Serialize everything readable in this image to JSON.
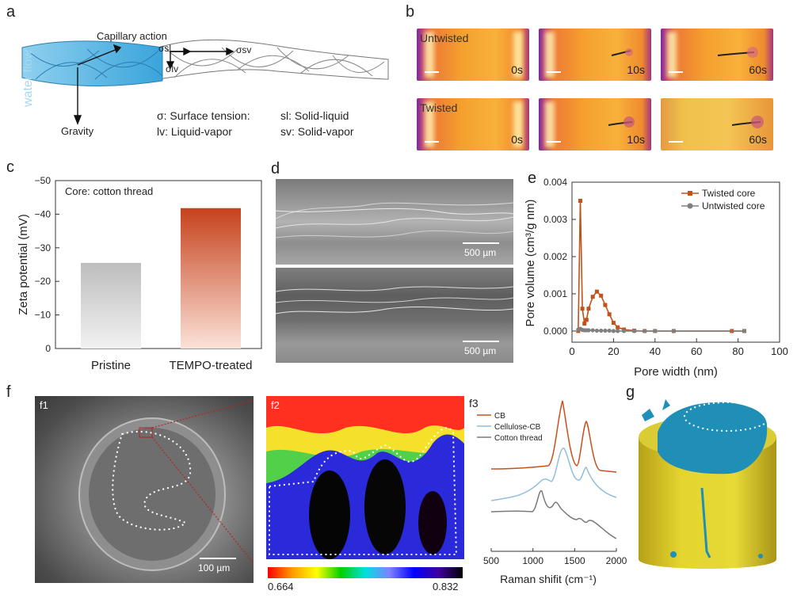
{
  "panels": {
    "a": "a",
    "b": "b",
    "c": "c",
    "d": "d",
    "e": "e",
    "f": "f",
    "g": "g"
  },
  "panel_a": {
    "water_flow": "water flow",
    "capillary": "Capillary action",
    "gravity": "Gravity",
    "sigma_sl": "σsl",
    "sigma_lv": "σlv",
    "sigma_sv": "σsv",
    "legend_sigma": "σ: Surface tension:",
    "legend_sl": "sl: Solid-liquid",
    "legend_lv": "lv: Liquid-vapor",
    "legend_sv": "sv: Solid-vapor"
  },
  "panel_b": {
    "untwisted": "Untwisted",
    "twisted": "Twisted",
    "times": [
      "0s",
      "10s",
      "60s"
    ]
  },
  "panel_c": {
    "core_label": "Core: cotton thread",
    "ylabel": "Zeta potential (mV)",
    "categories": [
      "Pristine",
      "TEMPO-treated"
    ],
    "yticks": [
      "0",
      "−10",
      "−20",
      "−30",
      "−40",
      "−50"
    ]
  },
  "panel_d": {
    "scale_top": "500 µm",
    "scale_bottom": "500 µm"
  },
  "panel_e": {
    "xlabel": "Pore width (nm)",
    "ylabel": "Pore volume (cm³/g nm)",
    "legend_twisted": "Twisted core",
    "legend_untwisted": "Untwisted core",
    "xticks": [
      "0",
      "20",
      "40",
      "60",
      "80",
      "100"
    ],
    "yticks": [
      "0.000",
      "0.001",
      "0.002",
      "0.003",
      "0.004"
    ]
  },
  "panel_f": {
    "f1": "f1",
    "f2": "f2",
    "f3": "f3",
    "scale_f1": "100 µm",
    "colorbar_min": "0.664",
    "colorbar_max": "0.832",
    "raman_legend": [
      "CB",
      "Cellulose-CB",
      "Cotton thread"
    ],
    "raman_xlabel": "Raman shifit (cm⁻¹)",
    "raman_xticks": [
      "500",
      "1000",
      "1500",
      "2000"
    ]
  },
  "colors": {
    "cb": "#c8501e",
    "cellulose_cb": "#8fbedb",
    "cotton": "#7a7a7a",
    "twisted": "#c0521a",
    "untwisted": "#808080"
  },
  "chart_data": [
    {
      "id": "c",
      "type": "bar",
      "title": "",
      "annotation": "Core: cotton thread",
      "categories": [
        "Pristine",
        "TEMPO-treated"
      ],
      "values": [
        -25.5,
        -41.8
      ],
      "xlabel": "",
      "ylabel": "Zeta potential (mV)",
      "ylim": [
        0,
        -50
      ]
    },
    {
      "id": "e",
      "type": "line",
      "xlabel": "Pore width (nm)",
      "ylabel": "Pore volume (cm3/g nm)",
      "xlim": [
        0,
        100
      ],
      "ylim": [
        -0.0003,
        0.004
      ],
      "series": [
        {
          "name": "Twisted core",
          "x": [
            3,
            4,
            5,
            6,
            7,
            8,
            10,
            12,
            14,
            16,
            18,
            20,
            22,
            25,
            30,
            35,
            40,
            49,
            77,
            83
          ],
          "y": [
            0.0,
            0.0035,
            0.0006,
            0.0002,
            0.0003,
            0.0006,
            0.00092,
            0.00106,
            0.00095,
            0.0007,
            0.00045,
            0.00022,
            0.0001,
            4e-05,
            1e-05,
            0.0,
            0.0,
            0.0,
            0.0,
            0.0
          ]
        },
        {
          "name": "Untwisted core",
          "x": [
            3,
            4,
            5,
            6,
            7,
            8,
            10,
            12,
            14,
            16,
            18,
            20,
            22,
            25,
            30,
            35,
            40,
            49,
            83
          ],
          "y": [
            4e-05,
            6e-05,
            3e-05,
            2e-05,
            2e-05,
            2e-05,
            2e-05,
            1e-05,
            1e-05,
            1e-05,
            1e-05,
            0.0,
            0.0,
            0.0,
            0.0,
            0.0,
            0.0,
            0.0,
            0.0
          ]
        }
      ]
    },
    {
      "id": "f3",
      "type": "line",
      "xlabel": "Raman shifit (cm-1)",
      "ylabel": "",
      "xlim": [
        500,
        2000
      ],
      "series": [
        {
          "name": "CB"
        },
        {
          "name": "Cellulose-CB"
        },
        {
          "name": "Cotton thread"
        }
      ]
    }
  ]
}
